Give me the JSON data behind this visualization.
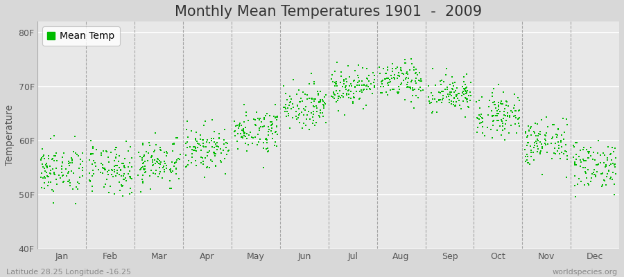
{
  "title": "Monthly Mean Temperatures 1901  -  2009",
  "ylabel": "Temperature",
  "xlabel_labels": [
    "Jan",
    "Feb",
    "Mar",
    "Apr",
    "May",
    "Jun",
    "Jul",
    "Aug",
    "Sep",
    "Oct",
    "Nov",
    "Dec"
  ],
  "ytick_labels": [
    "40F",
    "50F",
    "60F",
    "70F",
    "80F"
  ],
  "ytick_values": [
    40,
    50,
    60,
    70,
    80
  ],
  "ylim": [
    40,
    82
  ],
  "legend_label": "Mean Temp",
  "dot_color": "#00bb00",
  "fig_bg_color": "#d8d8d8",
  "plot_bg_color": "#e8e8e8",
  "footer_left": "Latitude 28.25 Longitude -16.25",
  "footer_right": "worldspecies.org",
  "years": 109,
  "monthly_means_F": [
    54.5,
    54.5,
    56.0,
    58.5,
    62.0,
    66.5,
    70.0,
    71.0,
    68.5,
    65.0,
    59.5,
    55.5
  ],
  "monthly_stds_F": [
    2.3,
    2.3,
    2.2,
    2.0,
    2.0,
    2.0,
    1.8,
    1.8,
    1.8,
    2.0,
    2.2,
    2.3
  ],
  "title_fontsize": 15,
  "axis_fontsize": 10,
  "tick_fontsize": 9,
  "footer_fontsize": 8
}
